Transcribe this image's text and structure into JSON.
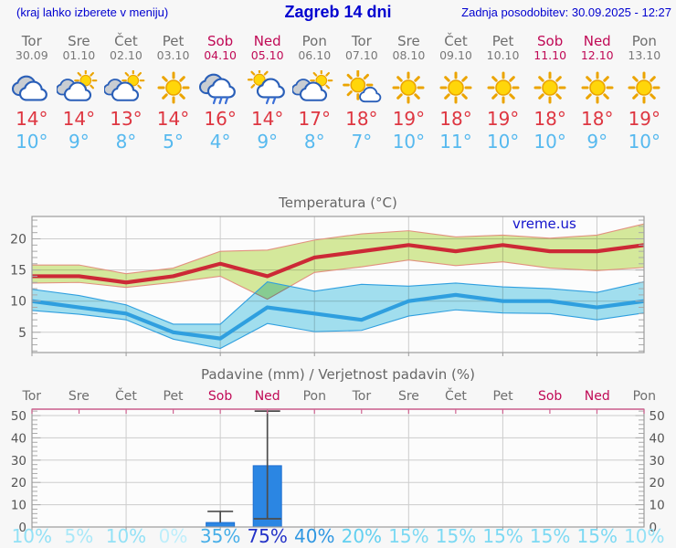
{
  "header": {
    "left_note": "(kraj lahko izberete v meniju)",
    "title": "Zagreb 14 dni",
    "updated": "Zadnja posodobitev: 30.09.2025 - 12:27"
  },
  "temp_chart": {
    "title": "Temperatura (°C)",
    "watermark": "vreme.us"
  },
  "precip_chart": {
    "title": "Padavine (mm) / Verjetnost padavin (%)"
  },
  "days": [
    {
      "name": "Tor",
      "date": "30.09",
      "weekend": false,
      "icon": "cloudy",
      "tmax": "14°",
      "tmin": "10°",
      "pop": "10%",
      "pop_color": "#93e1f6"
    },
    {
      "name": "Sre",
      "date": "01.10",
      "weekend": false,
      "icon": "sun-cloud",
      "tmax": "14°",
      "tmin": "9°",
      "pop": "5%",
      "pop_color": "#a9e8f8"
    },
    {
      "name": "Čet",
      "date": "02.10",
      "weekend": false,
      "icon": "sun-cloud",
      "tmax": "13°",
      "tmin": "8°",
      "pop": "10%",
      "pop_color": "#93e1f6"
    },
    {
      "name": "Pet",
      "date": "03.10",
      "weekend": false,
      "icon": "sunny",
      "tmax": "14°",
      "tmin": "5°",
      "pop": "0%",
      "pop_color": "#bdeefb"
    },
    {
      "name": "Sob",
      "date": "04.10",
      "weekend": true,
      "icon": "rain",
      "tmax": "16°",
      "tmin": "4°",
      "pop": "35%",
      "pop_color": "#46aee8"
    },
    {
      "name": "Ned",
      "date": "05.10",
      "weekend": true,
      "icon": "sun-rain",
      "tmax": "14°",
      "tmin": "9°",
      "pop": "75%",
      "pop_color": "#2433c8"
    },
    {
      "name": "Pon",
      "date": "06.10",
      "weekend": false,
      "icon": "sun-cloud",
      "tmax": "17°",
      "tmin": "8°",
      "pop": "40%",
      "pop_color": "#2f97e2"
    },
    {
      "name": "Tor",
      "date": "07.10",
      "weekend": false,
      "icon": "sunny-cloud",
      "tmax": "18°",
      "tmin": "7°",
      "pop": "20%",
      "pop_color": "#63d0f0"
    },
    {
      "name": "Sre",
      "date": "08.10",
      "weekend": false,
      "icon": "sunny",
      "tmax": "19°",
      "tmin": "10°",
      "pop": "15%",
      "pop_color": "#7cd9f3"
    },
    {
      "name": "Čet",
      "date": "09.10",
      "weekend": false,
      "icon": "sunny",
      "tmax": "18°",
      "tmin": "11°",
      "pop": "15%",
      "pop_color": "#7cd9f3"
    },
    {
      "name": "Pet",
      "date": "10.10",
      "weekend": false,
      "icon": "sunny",
      "tmax": "19°",
      "tmin": "10°",
      "pop": "15%",
      "pop_color": "#7cd9f3"
    },
    {
      "name": "Sob",
      "date": "11.10",
      "weekend": true,
      "icon": "sunny",
      "tmax": "18°",
      "tmin": "10°",
      "pop": "15%",
      "pop_color": "#7cd9f3"
    },
    {
      "name": "Ned",
      "date": "12.10",
      "weekend": true,
      "icon": "sunny",
      "tmax": "18°",
      "tmin": "9°",
      "pop": "15%",
      "pop_color": "#7cd9f3"
    },
    {
      "name": "Pon",
      "date": "13.10",
      "weekend": false,
      "icon": "sunny",
      "tmax": "19°",
      "tmin": "10°",
      "pop": "10%",
      "pop_color": "#93e1f6"
    }
  ],
  "chart_data": [
    {
      "type": "line",
      "title": "Temperatura (°C)",
      "categories": [
        "Tor 30.09",
        "Sre 01.10",
        "Čet 02.10",
        "Pet 03.10",
        "Sob 04.10",
        "Ned 05.10",
        "Pon 06.10",
        "Tor 07.10",
        "Sre 08.10",
        "Čet 09.10",
        "Pet 10.10",
        "Sob 11.10",
        "Ned 12.10",
        "Pon 13.10"
      ],
      "series": [
        {
          "name": "tmax",
          "color": "#cc2936",
          "values": [
            14,
            14,
            13,
            14,
            16,
            14,
            17,
            18,
            19,
            18,
            19,
            18,
            18,
            19
          ]
        },
        {
          "name": "tmax_band_upper",
          "color": "#d7eb9d",
          "values": [
            15.8,
            15.8,
            14.4,
            15.3,
            18,
            18.2,
            19.8,
            20.8,
            21.3,
            20.3,
            20.6,
            20.1,
            20.6,
            22.4
          ]
        },
        {
          "name": "tmax_band_lower",
          "color": "#d7eb9d",
          "values": [
            12.9,
            13,
            12.2,
            13,
            14,
            10.3,
            14.6,
            15.5,
            16.6,
            15.7,
            16.3,
            15.3,
            14.9,
            15.4
          ]
        },
        {
          "name": "tmin",
          "color": "#2f9fdf",
          "values": [
            10,
            9,
            8,
            5,
            4,
            9,
            8,
            7,
            10,
            11,
            10,
            10,
            9,
            10
          ]
        },
        {
          "name": "tmin_band_upper",
          "color": "#a3e1f1",
          "values": [
            11.9,
            10.9,
            9.4,
            6.3,
            6.3,
            13.1,
            11.6,
            12.7,
            12.4,
            12.9,
            12.3,
            12,
            11.4,
            13.1
          ]
        },
        {
          "name": "tmin_band_lower",
          "color": "#a3e1f1",
          "values": [
            8.5,
            7.9,
            7,
            3.9,
            2.4,
            6.4,
            5.1,
            5.3,
            7.6,
            8.6,
            8.1,
            8,
            7,
            8.1
          ]
        }
      ],
      "ylim": [
        1.7,
        23.6
      ],
      "yticks": [
        5,
        10,
        15,
        20
      ],
      "grid": true,
      "legend_position": "none"
    },
    {
      "type": "bar",
      "title": "Padavine (mm) / Verjetnost padavin (%)",
      "categories": [
        "Tor",
        "Sre",
        "Čet",
        "Pet",
        "Sob",
        "Ned",
        "Pon",
        "Tor",
        "Sre",
        "Čet",
        "Pet",
        "Sob",
        "Ned",
        "Pon"
      ],
      "precip_mm": [
        0,
        0,
        0,
        0,
        2,
        27.5,
        0,
        0,
        0,
        0,
        0,
        0,
        0,
        0
      ],
      "whisker_hi": [
        null,
        null,
        null,
        null,
        7,
        52,
        null,
        null,
        null,
        null,
        null,
        null,
        null,
        null
      ],
      "whisker_lo": [
        null,
        null,
        null,
        null,
        null,
        3.7,
        null,
        null,
        null,
        null,
        null,
        null,
        null,
        null
      ],
      "probability_pct": [
        10,
        5,
        10,
        0,
        35,
        75,
        40,
        20,
        15,
        15,
        15,
        15,
        15,
        10
      ],
      "ylim": [
        0,
        53
      ],
      "yticks": [
        0,
        10,
        20,
        30,
        40,
        50
      ],
      "grid": true
    }
  ],
  "colors": {
    "header_blue": "#0000d0",
    "weekday_text": "#6e6e6e",
    "weekend_text": "#c00a56",
    "tmax_text": "#de3641",
    "tmin_text": "#56b9ef",
    "tmax_line": "#cc2936",
    "tmax_band": "#d7eb9d",
    "tmax_band_edge": "#e2917f",
    "tmin_line": "#2f9fdf",
    "tmin_band": "#a3e1f1",
    "bar_fill": "#2b86e3",
    "whisker": "#4d4d4d",
    "grid_line": "#cdcdcd",
    "axis_border": "#9b9b9b",
    "precip_top_line": "#cf6391",
    "watermark_blue": "#1414cc",
    "chart_title_gray": "#666666"
  }
}
